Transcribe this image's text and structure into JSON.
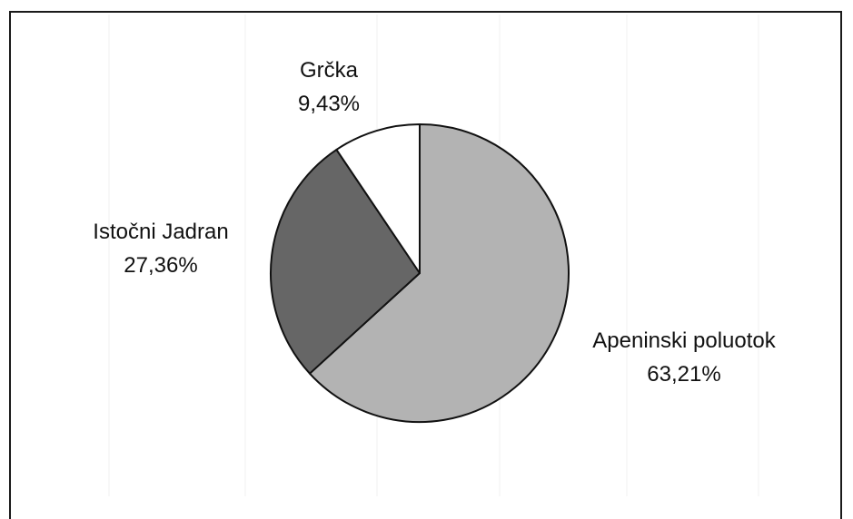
{
  "chart_data": {
    "type": "pie",
    "title": "",
    "start": "12 o'clock",
    "direction": "clockwise",
    "slices": [
      {
        "label": "Apeninski poluotok",
        "value": 63.21,
        "value_text": "63,21%",
        "color": "#b3b3b3"
      },
      {
        "label": "Istočni Jadran",
        "value": 27.36,
        "value_text": "27,36%",
        "color": "#666666"
      },
      {
        "label": "Grčka",
        "value": 9.43,
        "value_text": "9,43%",
        "color": "#ffffff"
      }
    ]
  }
}
